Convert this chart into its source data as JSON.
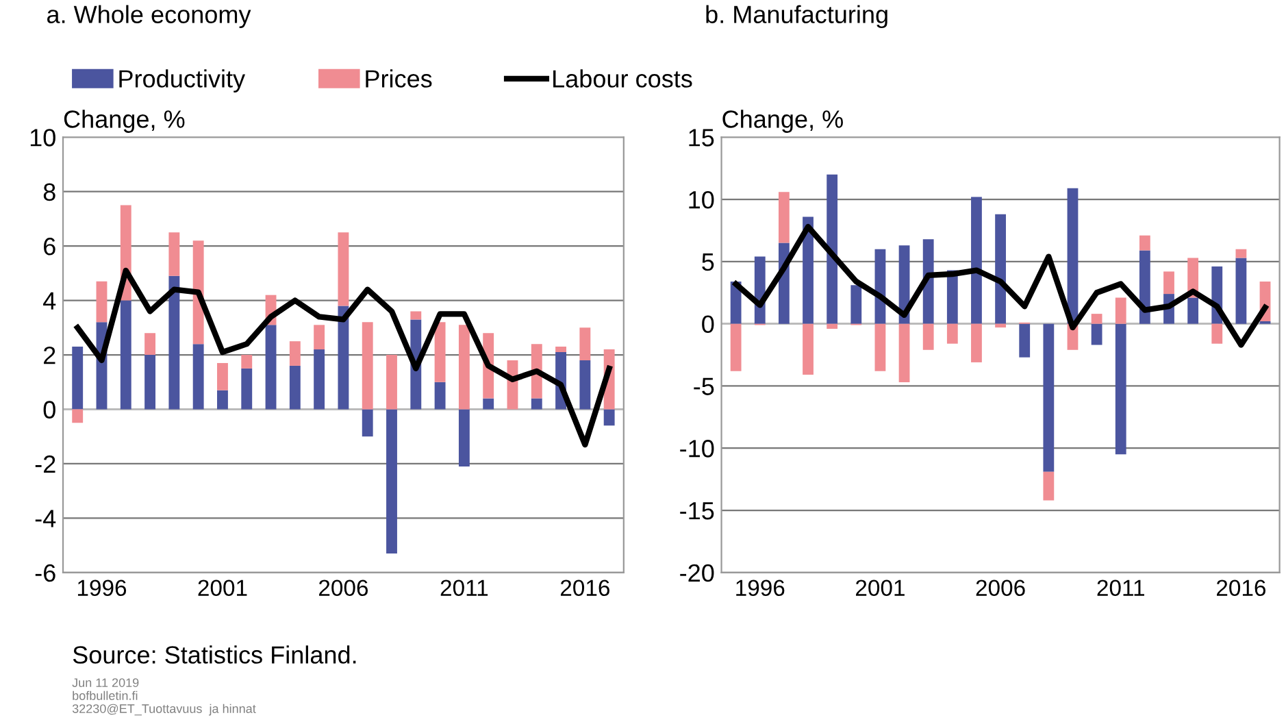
{
  "chart_data": [
    {
      "type": "bar",
      "title": "a. Whole economy",
      "ylabel": "Change, %",
      "stacked": true,
      "legend": "top",
      "grid": "y",
      "categories": [
        null,
        "1996",
        null,
        null,
        null,
        null,
        "2001",
        null,
        null,
        null,
        null,
        "2006",
        null,
        null,
        null,
        null,
        "2011",
        null,
        null,
        null,
        null,
        "2016",
        null
      ],
      "ylim": [
        -6,
        10
      ],
      "yticks": [
        -6,
        -4,
        -2,
        0,
        2,
        4,
        6,
        8,
        10
      ],
      "series": [
        {
          "name": "Productivity",
          "color": "#4b559f",
          "values": [
            2.3,
            3.2,
            4.0,
            2.0,
            4.9,
            2.4,
            0.7,
            1.5,
            3.1,
            1.6,
            2.2,
            3.8,
            -1.0,
            -5.3,
            3.3,
            1.0,
            -2.1,
            0.4,
            0.0,
            0.4,
            2.1,
            1.8,
            -0.6
          ]
        },
        {
          "name": "Prices",
          "color": "#f08c92",
          "values": [
            -0.5,
            1.5,
            3.5,
            0.8,
            1.6,
            3.8,
            1.0,
            0.5,
            1.1,
            0.9,
            0.9,
            2.7,
            3.2,
            2.0,
            0.3,
            2.2,
            3.1,
            2.4,
            1.8,
            2.0,
            0.2,
            1.2,
            2.2
          ]
        },
        {
          "name": "Labour costs",
          "type": "line",
          "color": "#000000",
          "values": [
            3.0,
            1.8,
            5.1,
            3.6,
            4.4,
            4.3,
            2.1,
            2.4,
            3.4,
            4.0,
            3.4,
            3.3,
            4.4,
            3.6,
            1.5,
            3.5,
            3.5,
            1.6,
            1.1,
            1.4,
            0.9,
            -1.3,
            1.5
          ]
        }
      ],
      "annotations": [
        "Source: Statistics Finland.",
        "Jun 11 2019",
        "bofbulletin.fi",
        "32230@ET_Tuottavuus  ja hinnat"
      ]
    },
    {
      "type": "bar",
      "title": "b. Manufacturing",
      "ylabel": "Change, %",
      "stacked": true,
      "grid": "y",
      "categories": [
        null,
        "1996",
        null,
        null,
        null,
        null,
        "2001",
        null,
        null,
        null,
        null,
        "2006",
        null,
        null,
        null,
        null,
        "2011",
        null,
        null,
        null,
        null,
        "2016",
        null
      ],
      "ylim": [
        -20,
        15
      ],
      "yticks": [
        -20,
        -15,
        -10,
        -5,
        0,
        5,
        10,
        15
      ],
      "series": [
        {
          "color": "#4b559f",
          "values": [
            3.4,
            5.4,
            6.5,
            8.6,
            12.0,
            3.1,
            6.0,
            6.3,
            6.8,
            4.3,
            10.2,
            8.8,
            -2.7,
            -11.9,
            10.9,
            -1.7,
            -10.5,
            5.9,
            2.4,
            2.1,
            4.6,
            5.3,
            0.2
          ]
        },
        {
          "color": "#f08c92",
          "values": [
            -3.8,
            -0.1,
            4.1,
            -4.1,
            -0.4,
            -0.1,
            -3.8,
            -4.7,
            -2.1,
            -1.6,
            -3.1,
            -0.3,
            0.1,
            -2.3,
            -2.1,
            0.8,
            2.1,
            1.2,
            1.8,
            3.2,
            -1.6,
            0.7,
            3.2
          ]
        },
        {
          "type": "line",
          "color": "#000000",
          "values": [
            3.2,
            1.5,
            4.5,
            7.8,
            5.6,
            3.4,
            2.2,
            0.7,
            3.9,
            4.0,
            4.3,
            3.4,
            1.4,
            5.4,
            -0.3,
            2.5,
            3.2,
            1.1,
            1.4,
            2.6,
            1.4,
            -1.7,
            1.3
          ]
        }
      ]
    }
  ]
}
